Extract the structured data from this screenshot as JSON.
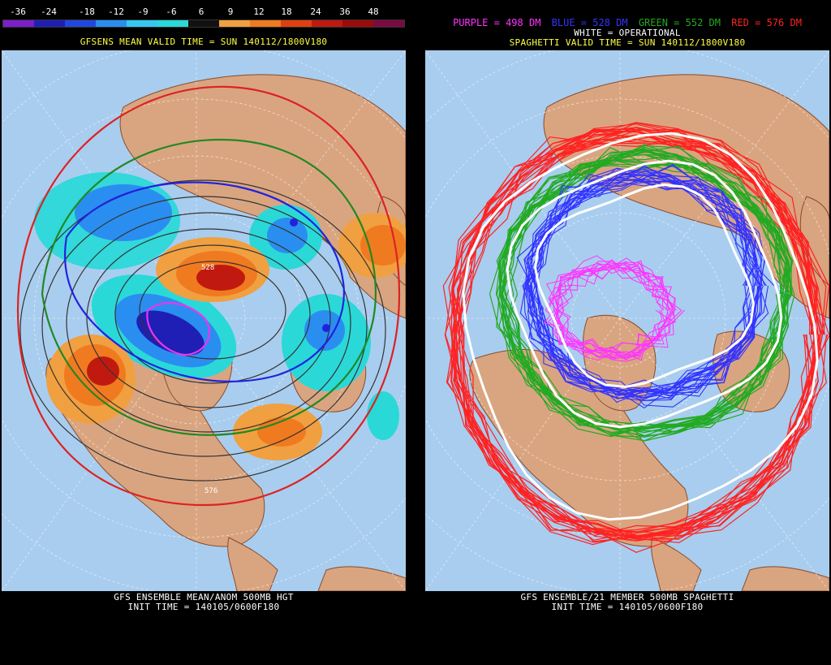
{
  "left_panel": {
    "colorbar": {
      "labels": [
        "-36",
        "-24",
        "-18",
        "-12",
        "-9",
        "-6",
        "6",
        "9",
        "12",
        "18",
        "24",
        "36",
        "48"
      ],
      "colors": [
        "#7a1fc9",
        "#1f1fb5",
        "#2048e0",
        "#2a8ef0",
        "#35c8f0",
        "#2bd8d8",
        "#111111",
        "#f0a040",
        "#f07a20",
        "#e04010",
        "#c01a10",
        "#9c0a0a",
        "#7a0a40"
      ]
    },
    "top_title": "GFSENS MEAN VALID TIME = SUN 140112/1800V180",
    "contour_label": "528",
    "contour_label_2": "576",
    "bottom_title_1": "GFS ENSEMBLE MEAN/ANOM 500MB HGT",
    "bottom_title_2": "INIT TIME = 140105/0600F180"
  },
  "right_panel": {
    "legend": [
      {
        "text": "PURPLE = 498 DM",
        "color": "#ff33ff"
      },
      {
        "text": "BLUE = 528 DM",
        "color": "#3333ff"
      },
      {
        "text": "GREEN = 552 DM",
        "color": "#22aa22"
      },
      {
        "text": "RED = 576 DM",
        "color": "#ff2222"
      }
    ],
    "legend_operational": "WHITE = OPERATIONAL",
    "top_title": "SPAGHETTI VALID TIME = SUN 140112/1800V180",
    "bottom_title_1": "GFS ENSEMBLE/21 MEMBER 500MB SPAGHETTI",
    "bottom_title_2": "INIT TIME = 140105/0600F180"
  },
  "colors": {
    "ocean": "#a9cdee",
    "land": "#d9a581",
    "border": "#8a4a2a",
    "grid": "#ffffff"
  }
}
